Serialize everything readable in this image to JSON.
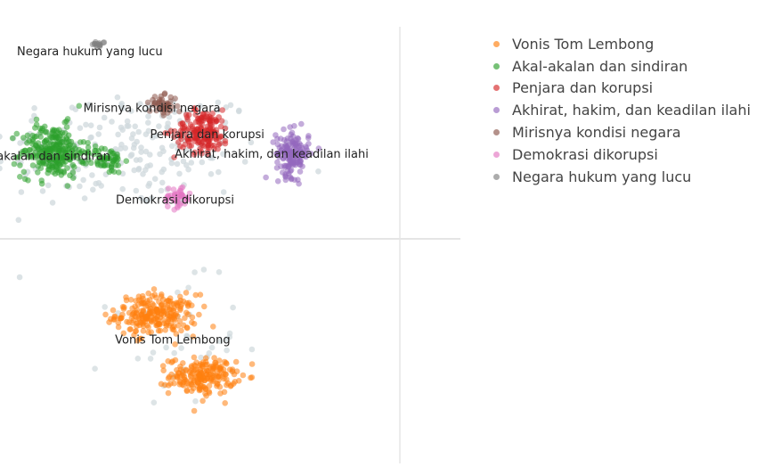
{
  "chart_data": {
    "type": "scatter",
    "title": "",
    "xlabel": "",
    "ylabel": "",
    "grid": false,
    "zero_lines": true,
    "legend_position": "top-right",
    "xlim": [
      -10,
      10
    ],
    "ylim": [
      -10,
      10
    ],
    "unassigned_color": "#cfd8dc",
    "series": [
      {
        "name": "Vonis Tom Lembong",
        "color": "#ff7f0e",
        "label": "Vonis Tom Lembong",
        "label_pos": [
          -2.5,
          -4.5
        ],
        "clusters": [
          {
            "center": [
              -3.2,
              -3.2
            ],
            "spread": [
              1.6,
              0.85
            ],
            "n": 240
          },
          {
            "center": [
              -1.2,
              -6.0
            ],
            "spread": [
              1.3,
              0.75
            ],
            "n": 200
          }
        ]
      },
      {
        "name": "Akal-akalan dan sindiran",
        "color": "#2ca02c",
        "label": "Akal-akalan dan sindiran",
        "label_pos": [
          -8.3,
          3.9
        ],
        "clusters": [
          {
            "center": [
              -7.7,
              4.3
            ],
            "spread": [
              1.25,
              1.1
            ],
            "n": 260
          },
          {
            "center": [
              -5.4,
              3.9
            ],
            "spread": [
              0.7,
              0.55
            ],
            "n": 60
          }
        ]
      },
      {
        "name": "Penjara dan korupsi",
        "color": "#d62728",
        "label": "Penjara dan korupsi",
        "label_pos": [
          -1.0,
          4.9
        ],
        "clusters": [
          {
            "center": [
              -1.2,
              5.2
            ],
            "spread": [
              1.1,
              0.9
            ],
            "n": 170
          }
        ]
      },
      {
        "name": "Akhirat, hakim, dan keadilan ilahi",
        "color": "#9467bd",
        "label": "Akhirat, hakim, dan keadilan ilahi",
        "label_pos": [
          1.8,
          4.0
        ],
        "clusters": [
          {
            "center": [
              2.7,
              4.2
            ],
            "spread": [
              0.65,
              0.95
            ],
            "n": 160
          }
        ]
      },
      {
        "name": "Mirisnya kondisi negara",
        "color": "#8c564b",
        "label": "Mirisnya kondisi negara",
        "label_pos": [
          -3.4,
          6.1
        ],
        "clusters": [
          {
            "center": [
              -2.9,
              6.4
            ],
            "spread": [
              0.55,
              0.4
            ],
            "n": 45
          }
        ]
      },
      {
        "name": "Demokrasi dikorupsi",
        "color": "#e377c2",
        "label": "Demokrasi dikorupsi",
        "label_pos": [
          -2.4,
          1.9
        ],
        "clusters": [
          {
            "center": [
              -2.3,
              2.2
            ],
            "spread": [
              0.55,
              0.45
            ],
            "n": 45
          }
        ]
      },
      {
        "name": "Negara hukum yang lucu",
        "color": "#7f7f7f",
        "label": "Negara hukum yang lucu",
        "label_pos": [
          -6.1,
          8.7
        ],
        "clusters": [
          {
            "center": [
              -5.7,
              9.2
            ],
            "spread": [
              0.25,
              0.12
            ],
            "n": 14
          }
        ]
      }
    ]
  }
}
